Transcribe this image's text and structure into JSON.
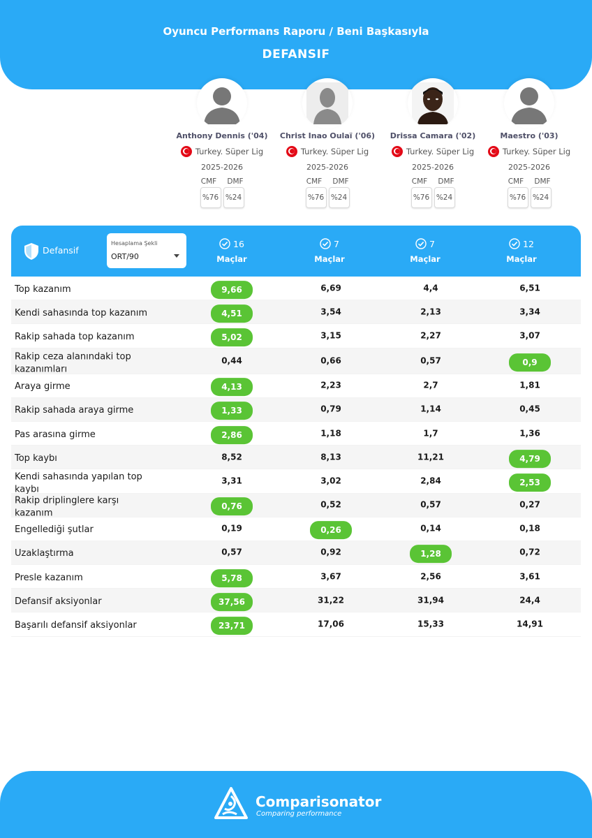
{
  "header": {
    "title": "Oyuncu Performans Raporu / Beni Başkasıyla",
    "subtitle": "DEFANSIF"
  },
  "players": [
    {
      "name": "Anthony Dennis ('04)",
      "league": "Turkey. Süper Lig",
      "season": "2025-2026",
      "positions": [
        {
          "label": "CMF",
          "value": "%76"
        },
        {
          "label": "DMF",
          "value": "%24"
        }
      ],
      "avatar": "silhouette-icon"
    },
    {
      "name": "Christ Inao Oulaï ('06)",
      "league": "Turkey. Süper Lig",
      "season": "2025-2026",
      "positions": [
        {
          "label": "CMF",
          "value": "%76"
        },
        {
          "label": "DMF",
          "value": "%24"
        }
      ],
      "avatar": "silhouette-icon"
    },
    {
      "name": "Drissa Camara ('02)",
      "league": "Turkey. Süper Lig",
      "season": "2025-2026",
      "positions": [
        {
          "label": "CMF",
          "value": "%76"
        },
        {
          "label": "DMF",
          "value": "%24"
        }
      ],
      "avatar": "player-photo"
    },
    {
      "name": "Maestro ('03)",
      "league": "Turkey. Süper Lig",
      "season": "2025-2026",
      "positions": [
        {
          "label": "CMF",
          "value": "%76"
        },
        {
          "label": "DMF",
          "value": "%24"
        }
      ],
      "avatar": "silhouette-icon"
    }
  ],
  "bar": {
    "section_label": "Defansif",
    "calc_label": "Hesaplama Şekli",
    "calc_value": "ORT/90",
    "matches_label": "Maçlar",
    "match_counts": [
      "16",
      "7",
      "7",
      "12"
    ]
  },
  "rows": [
    {
      "label": "Top kazanım",
      "values": [
        "9,66",
        "6,69",
        "4,4",
        "6,51"
      ],
      "best": 0
    },
    {
      "label": "Kendi sahasında top kazanım",
      "values": [
        "4,51",
        "3,54",
        "2,13",
        "3,34"
      ],
      "best": 0
    },
    {
      "label": "Rakip sahada top kazanım",
      "values": [
        "5,02",
        "3,15",
        "2,27",
        "3,07"
      ],
      "best": 0
    },
    {
      "label": "Rakip ceza alanındaki top kazanımları",
      "values": [
        "0,44",
        "0,66",
        "0,57",
        "0,9"
      ],
      "best": 3
    },
    {
      "label": "Araya girme",
      "values": [
        "4,13",
        "2,23",
        "2,7",
        "1,81"
      ],
      "best": 0
    },
    {
      "label": "Rakip sahada araya girme",
      "values": [
        "1,33",
        "0,79",
        "1,14",
        "0,45"
      ],
      "best": 0
    },
    {
      "label": "Pas arasına girme",
      "values": [
        "2,86",
        "1,18",
        "1,7",
        "1,36"
      ],
      "best": 0
    },
    {
      "label": "Top kaybı",
      "values": [
        "8,52",
        "8,13",
        "11,21",
        "4,79"
      ],
      "best": 3
    },
    {
      "label": "Kendi sahasında yapılan top kaybı",
      "values": [
        "3,31",
        "3,02",
        "2,84",
        "2,53"
      ],
      "best": 3
    },
    {
      "label": "Rakip driplinglere karşı kazanım",
      "values": [
        "0,76",
        "0,52",
        "0,57",
        "0,27"
      ],
      "best": 0
    },
    {
      "label": "Engellediği şutlar",
      "values": [
        "0,19",
        "0,26",
        "0,14",
        "0,18"
      ],
      "best": 1
    },
    {
      "label": "Uzaklaştırma",
      "values": [
        "0,57",
        "0,92",
        "1,28",
        "0,72"
      ],
      "best": 2
    },
    {
      "label": "Presle kazanım",
      "values": [
        "5,78",
        "3,67",
        "2,56",
        "3,61"
      ],
      "best": 0
    },
    {
      "label": "Defansif aksiyonlar",
      "values": [
        "37,56",
        "31,22",
        "31,94",
        "24,4"
      ],
      "best": 0
    },
    {
      "label": "Başarılı defansif aksiyonlar",
      "values": [
        "23,71",
        "17,06",
        "15,33",
        "14,91"
      ],
      "best": 0
    }
  ],
  "footer": {
    "brand": "Comparisonator",
    "tagline": "Comparing performance"
  },
  "colors": {
    "accent": "#2aaaf6",
    "best": "#5ac435",
    "flag": "#e30a17"
  }
}
